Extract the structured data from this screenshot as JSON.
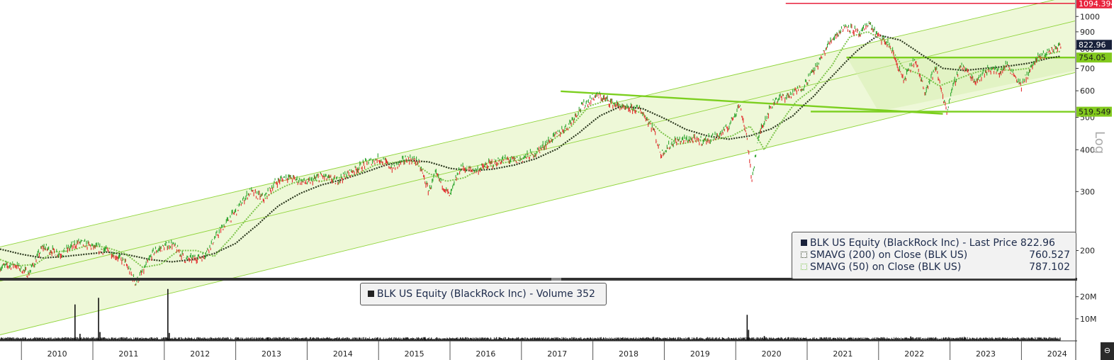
{
  "chart_data": {
    "type": "line",
    "security": "BLK US Equity (BlackRock Inc)",
    "scale": "Log",
    "x_years": [
      "2010",
      "2011",
      "2012",
      "2013",
      "2014",
      "2015",
      "2016",
      "2017",
      "2018",
      "2019",
      "2020",
      "2021",
      "2022",
      "2023",
      "2024"
    ],
    "y_ticks": [
      200,
      300,
      400,
      500,
      600,
      700,
      800,
      900,
      1000
    ],
    "ylim": [
      165,
      1120
    ],
    "price_series": {
      "name": "BLK US Equity (BlackRock Inc) - Last Price",
      "x": [
        2009.7,
        2009.9,
        2010.1,
        2010.3,
        2010.55,
        2010.8,
        2011.0,
        2011.25,
        2011.45,
        2011.6,
        2011.72,
        2011.85,
        2012.1,
        2012.3,
        2012.55,
        2012.8,
        2013.0,
        2013.2,
        2013.4,
        2013.55,
        2013.7,
        2013.85,
        2014.0,
        2014.2,
        2014.4,
        2014.6,
        2014.8,
        2015.0,
        2015.2,
        2015.4,
        2015.55,
        2015.7,
        2015.8,
        2016.0,
        2016.15,
        2016.35,
        2016.55,
        2016.75,
        2016.95,
        2017.2,
        2017.45,
        2017.65,
        2017.85,
        2018.05,
        2018.25,
        2018.45,
        2018.65,
        2018.85,
        2018.95,
        2019.15,
        2019.35,
        2019.55,
        2019.75,
        2019.9,
        2020.05,
        2020.15,
        2020.22,
        2020.35,
        2020.55,
        2020.75,
        2020.95,
        2021.15,
        2021.35,
        2021.55,
        2021.75,
        2021.85,
        2022.0,
        2022.15,
        2022.35,
        2022.5,
        2022.65,
        2022.8,
        2022.95,
        2023.15,
        2023.35,
        2023.55,
        2023.7,
        2023.8,
        2024.0,
        2024.2,
        2024.4,
        2024.55
      ],
      "values": [
        178,
        182,
        170,
        205,
        195,
        212,
        205,
        198,
        184,
        160,
        176,
        198,
        210,
        188,
        192,
        232,
        262,
        300,
        286,
        318,
        332,
        326,
        318,
        334,
        322,
        342,
        362,
        377,
        352,
        377,
        370,
        300,
        338,
        290,
        355,
        346,
        362,
        374,
        372,
        392,
        436,
        472,
        540,
        582,
        555,
        528,
        532,
        460,
        388,
        425,
        430,
        425,
        440,
        468,
        545,
        445,
        322,
        462,
        565,
        580,
        620,
        720,
        860,
        940,
        880,
        960,
        870,
        820,
        640,
        740,
        600,
        700,
        520,
        720,
        640,
        700,
        680,
        720,
        620,
        740,
        790,
        822.96
      ]
    },
    "sma200_series": {
      "name": "SMAVG (200)  on Close (BLK US)",
      "x": [
        2009.7,
        2010.0,
        2010.3,
        2010.6,
        2010.9,
        2011.2,
        2011.5,
        2011.8,
        2012.1,
        2012.4,
        2012.7,
        2013.0,
        2013.3,
        2013.6,
        2013.9,
        2014.2,
        2014.5,
        2014.8,
        2015.1,
        2015.4,
        2015.7,
        2016.0,
        2016.3,
        2016.6,
        2016.9,
        2017.2,
        2017.5,
        2017.8,
        2018.1,
        2018.4,
        2018.7,
        2019.0,
        2019.3,
        2019.6,
        2019.9,
        2020.2,
        2020.5,
        2020.8,
        2021.1,
        2021.4,
        2021.7,
        2022.0,
        2022.3,
        2022.6,
        2022.9,
        2023.2,
        2023.5,
        2023.8,
        2024.1,
        2024.4,
        2024.55
      ],
      "values": [
        202,
        195,
        190,
        192,
        195,
        198,
        194,
        188,
        185,
        188,
        196,
        210,
        238,
        272,
        296,
        314,
        326,
        342,
        360,
        372,
        368,
        352,
        346,
        350,
        360,
        376,
        402,
        448,
        505,
        540,
        530,
        496,
        460,
        440,
        430,
        440,
        462,
        505,
        580,
        680,
        790,
        880,
        850,
        770,
        700,
        690,
        700,
        710,
        725,
        752,
        760.527
      ]
    },
    "sma50_series": {
      "name": "SMAVG (50)  on Close (BLK US)",
      "values_note": "",
      "x": [
        2009.7,
        2009.95,
        2010.2,
        2010.45,
        2010.7,
        2010.95,
        2011.2,
        2011.45,
        2011.7,
        2011.95,
        2012.2,
        2012.45,
        2012.7,
        2012.95,
        2013.2,
        2013.45,
        2013.7,
        2013.95,
        2014.2,
        2014.45,
        2014.7,
        2014.95,
        2015.2,
        2015.45,
        2015.7,
        2015.95,
        2016.2,
        2016.45,
        2016.7,
        2016.95,
        2017.2,
        2017.45,
        2017.7,
        2017.95,
        2018.2,
        2018.45,
        2018.7,
        2018.95,
        2019.2,
        2019.45,
        2019.7,
        2019.95,
        2020.2,
        2020.4,
        2020.6,
        2020.85,
        2021.1,
        2021.35,
        2021.6,
        2021.85,
        2022.1,
        2022.35,
        2022.6,
        2022.85,
        2023.1,
        2023.35,
        2023.6,
        2023.85,
        2024.1,
        2024.35,
        2024.55
      ],
      "values": [
        188,
        180,
        182,
        198,
        200,
        208,
        204,
        196,
        178,
        182,
        200,
        200,
        192,
        220,
        255,
        292,
        312,
        326,
        322,
        330,
        338,
        360,
        366,
        372,
        340,
        322,
        330,
        352,
        364,
        372,
        390,
        430,
        470,
        540,
        562,
        538,
        512,
        452,
        415,
        425,
        428,
        440,
        470,
        400,
        470,
        558,
        612,
        715,
        870,
        900,
        840,
        700,
        670,
        620,
        650,
        680,
        700,
        690,
        700,
        770,
        787.102
      ]
    },
    "channel": {
      "upper": {
        "x1": 2009.7,
        "y1": 205,
        "x2": 2024.75,
        "y2": 1160
      },
      "middle": {
        "x1": 2009.7,
        "y1": 162,
        "x2": 2024.75,
        "y2": 970
      },
      "lower": {
        "x1": 2009.7,
        "y1": 112,
        "x2": 2024.75,
        "y2": 680
      }
    },
    "trendlines": [
      {
        "x1": 2017.55,
        "y1": 598,
        "x2": 2022.9,
        "y2": 512
      },
      {
        "x1": 2021.05,
        "y1": 520,
        "x2": 2024.75,
        "y2": 519.549
      },
      {
        "x1": 2021.55,
        "y1": 754.05,
        "x2": 2024.75,
        "y2": 754.05
      },
      {
        "x1": 2020.7,
        "y1": 1094.394,
        "x2": 2024.75,
        "y2": 1094.394
      }
    ],
    "price_tags": [
      {
        "label": "1094.394",
        "value": 1094.394,
        "color": "#e8223c",
        "text_color": "#ffffff"
      },
      {
        "label": "822.96",
        "value": 822.96,
        "color": "#18213a",
        "text_color": "#ffffff"
      },
      {
        "label": "754.05",
        "value": 754.05,
        "color": "#82c91e",
        "text_color": "#1a1a1a"
      },
      {
        "label": "519.549",
        "value": 519.549,
        "color": "#82c91e",
        "text_color": "#1a1a1a"
      }
    ],
    "log_label": "Log",
    "volume": {
      "name": "BLK US Equity (BlackRock Inc) - Volume 352",
      "y_ticks_label": [
        "10M",
        "20M"
      ],
      "y_ticks_value": [
        10,
        20
      ],
      "ylim": [
        0,
        26
      ],
      "spikes": [
        {
          "x": 2010.75,
          "v": 16.5
        },
        {
          "x": 2010.82,
          "v": 3.2
        },
        {
          "x": 2011.08,
          "v": 19.5
        },
        {
          "x": 2011.1,
          "v": 4.0
        },
        {
          "x": 2012.05,
          "v": 23.5
        },
        {
          "x": 2012.07,
          "v": 3.6
        },
        {
          "x": 2013.45,
          "v": 1.6
        },
        {
          "x": 2015.65,
          "v": 1.7
        },
        {
          "x": 2018.85,
          "v": 1.8
        },
        {
          "x": 2020.16,
          "v": 11.8
        },
        {
          "x": 2020.18,
          "v": 5.0
        },
        {
          "x": 2020.4,
          "v": 2.2
        },
        {
          "x": 2022.45,
          "v": 2.0
        },
        {
          "x": 2023.2,
          "v": 1.8
        }
      ]
    },
    "legend": {
      "price_label": "BLK US Equity (BlackRock Inc) - Last Price 822.96",
      "sma200_label": "SMAVG (200)  on Close (BLK US)",
      "sma200_value": "760.527",
      "sma50_label": "SMAVG (50)  on Close (BLK US)",
      "sma50_value": "787.102"
    },
    "colors": {
      "channel_fill": "#eef8d8",
      "channel_line": "#8fd43a",
      "trend_line": "#7ccf1f",
      "price_up": "#2fa52f",
      "price_down": "#e23030",
      "sma200": "#2d3a1f",
      "sma50": "#7cc44a"
    }
  },
  "ui": {
    "corner_button_glyph": "⊖"
  }
}
